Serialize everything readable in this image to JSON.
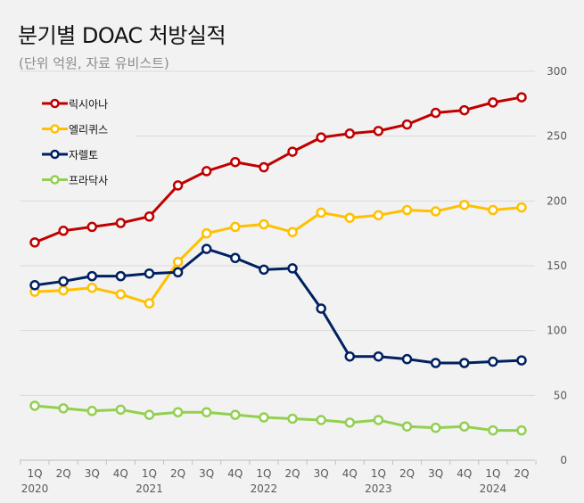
{
  "chart_data": {
    "type": "line",
    "title": "분기별 DOAC 처방실적",
    "subtitle": "(단위 억원, 자료 유비스트)",
    "x": [
      "1Q",
      "2Q",
      "3Q",
      "4Q",
      "1Q",
      "2Q",
      "3Q",
      "4Q",
      "1Q",
      "2Q",
      "3Q",
      "4Q",
      "1Q",
      "2Q",
      "3Q",
      "4Q",
      "1Q",
      "2Q"
    ],
    "year_labels": [
      {
        "index": 0,
        "label": "2020"
      },
      {
        "index": 4,
        "label": "2021"
      },
      {
        "index": 8,
        "label": "2022"
      },
      {
        "index": 12,
        "label": "2023"
      },
      {
        "index": 16,
        "label": "2024"
      }
    ],
    "ylim": [
      0,
      300
    ],
    "yticks": [
      0,
      50,
      100,
      150,
      200,
      250,
      300
    ],
    "grid": true,
    "legend_position": "top-left",
    "series": [
      {
        "name": "릭시아나",
        "color": "#c00000",
        "values": [
          168,
          177,
          180,
          183,
          188,
          212,
          223,
          230,
          226,
          238,
          249,
          252,
          254,
          259,
          268,
          270,
          276,
          280
        ]
      },
      {
        "name": "엘리퀴스",
        "color": "#ffc000",
        "values": [
          130,
          131,
          133,
          128,
          121,
          153,
          175,
          180,
          182,
          176,
          191,
          187,
          189,
          193,
          192,
          197,
          193,
          195
        ]
      },
      {
        "name": "자렐토",
        "color": "#002060",
        "values": [
          135,
          138,
          142,
          142,
          144,
          145,
          163,
          156,
          147,
          148,
          117,
          80,
          80,
          78,
          75,
          75,
          76,
          77
        ]
      },
      {
        "name": "프라닥사",
        "color": "#92d050",
        "values": [
          42,
          40,
          38,
          39,
          35,
          37,
          37,
          35,
          33,
          32,
          31,
          29,
          31,
          26,
          25,
          26,
          23,
          23
        ]
      }
    ]
  }
}
